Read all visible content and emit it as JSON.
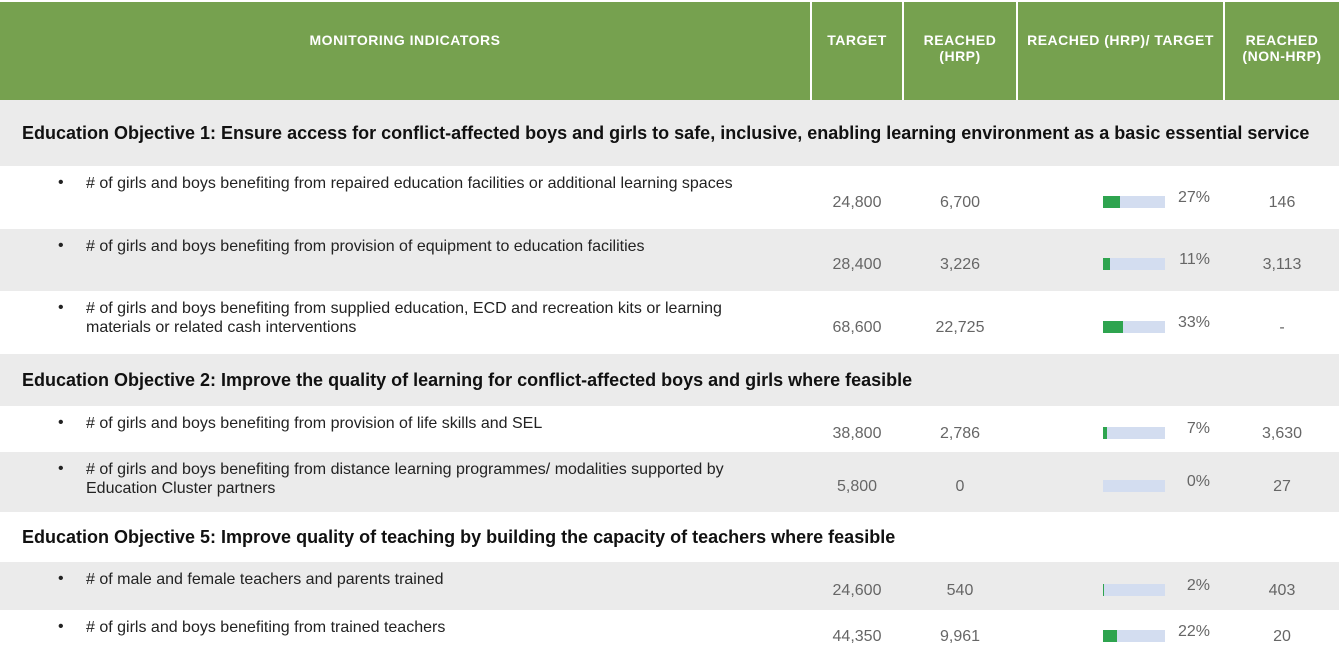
{
  "header": [
    "MONITORING INDICATORS",
    "TARGET",
    "REACHED (HRP)",
    "REACHED (HRP)/ TARGET",
    "REACHED (NON-HRP)"
  ],
  "sections": [
    {
      "title": "Education Objective 1: Ensure access for conflict-affected boys and girls to safe, inclusive, enabling learning environment as a basic essential service",
      "rows": [
        {
          "indicator": "# of girls and boys benefiting from repaired education facilities or additional learning spaces",
          "target": "24,800",
          "reached": "6,700",
          "ratio": {
            "value": 27,
            "label": "27%"
          },
          "non_hrp": "146"
        },
        {
          "indicator": "# of girls and boys benefiting from provision of equipment to education facilities",
          "target": "28,400",
          "reached": "3,226",
          "ratio": {
            "value": 11,
            "label": "11%"
          },
          "non_hrp": "3,113"
        },
        {
          "indicator": "# of girls and boys benefiting from supplied education, ECD and recreation kits or learning materials or related cash interventions",
          "target": "68,600",
          "reached": "22,725",
          "ratio": {
            "value": 33,
            "label": "33%"
          },
          "non_hrp": "-"
        }
      ]
    },
    {
      "title": "Education Objective 2: Improve the quality of learning for conflict-affected boys and girls where feasible",
      "rows": [
        {
          "indicator": "# of girls and boys benefiting from provision of life skills and SEL",
          "target": "38,800",
          "reached": "2,786",
          "ratio": {
            "value": 7,
            "label": "7%"
          },
          "non_hrp": "3,630"
        },
        {
          "indicator": "# of girls and boys benefiting from distance learning programmes/ modalities supported by Education Cluster partners",
          "target": "5,800",
          "reached": "0",
          "ratio": {
            "value": 0,
            "label": "0%"
          },
          "non_hrp": "27"
        }
      ]
    },
    {
      "title": "Education Objective 5: Improve quality of teaching by building the capacity of teachers where feasible",
      "rows": [
        {
          "indicator": "# of male and female teachers and parents trained",
          "target": "24,600",
          "reached": "540",
          "ratio": {
            "value": 2,
            "label": "2%"
          },
          "non_hrp": "403"
        },
        {
          "indicator": "# of girls and boys benefiting from trained teachers",
          "target": "44,350",
          "reached": "9,961",
          "ratio": {
            "value": 22,
            "label": "22%"
          },
          "non_hrp": "20"
        }
      ]
    }
  ]
}
